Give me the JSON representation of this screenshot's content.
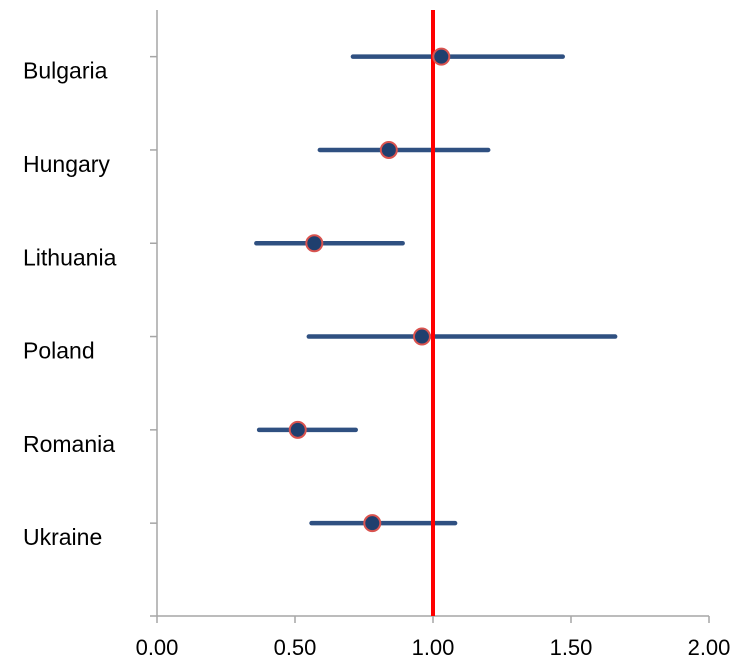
{
  "chart_data": {
    "type": "forest",
    "title": "",
    "xlabel": "",
    "ylabel": "",
    "xlim": [
      0,
      2
    ],
    "xticks": [
      "0.00",
      "0.50",
      "1.00",
      "1.50",
      "2.00"
    ],
    "grid": false,
    "legend": "none",
    "reference_line": {
      "x": 1.0,
      "color": "#ff0000"
    },
    "categories": [
      "Bulgaria",
      "Hungary",
      "Lithuania",
      "Poland",
      "Romania",
      "Ukraine"
    ],
    "estimates": [
      1.03,
      0.84,
      0.57,
      0.96,
      0.51,
      0.78
    ],
    "lower": [
      0.71,
      0.59,
      0.36,
      0.55,
      0.37,
      0.56
    ],
    "upper": [
      1.47,
      1.2,
      0.89,
      1.66,
      0.72,
      1.08
    ],
    "colors": {
      "ci_line": "#2f5081",
      "point_fill": "#1f3f6e",
      "point_stroke": "#d9534f",
      "axis": "#a6a6a6"
    }
  }
}
